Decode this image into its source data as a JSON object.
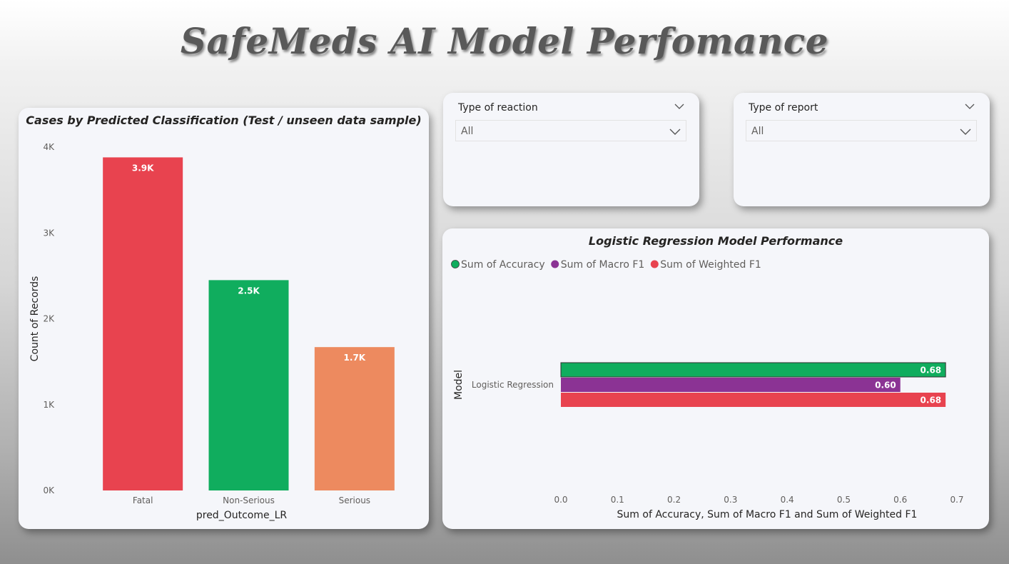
{
  "page": {
    "title": "SafeMeds AI Model Perfomance"
  },
  "slicers": [
    {
      "label": "Type of reaction",
      "value": "All"
    },
    {
      "label": "Type of report",
      "value": "All"
    }
  ],
  "colors": {
    "red": "#e8434f",
    "green": "#10ad5e",
    "orange": "#ed8a5f",
    "purple": "#8b3394",
    "card": "#f5f6fa"
  },
  "chart_data": [
    {
      "type": "bar",
      "title": "Cases by Predicted Classification (Test / unseen data sample)",
      "xlabel": "pred_Outcome_LR",
      "ylabel": "Count of Records",
      "categories": [
        "Fatal",
        "Non-Serious",
        "Serious"
      ],
      "values": [
        3880,
        2450,
        1670
      ],
      "data_labels": [
        "3.9K",
        "2.5K",
        "1.7K"
      ],
      "bar_colors": [
        "#e8434f",
        "#10ad5e",
        "#ed8a5f"
      ],
      "ylim": [
        0,
        4000
      ],
      "yticks": [
        0,
        1000,
        2000,
        3000,
        4000
      ],
      "ytick_labels": [
        "0K",
        "1K",
        "2K",
        "3K",
        "4K"
      ],
      "grid": false
    },
    {
      "type": "bar",
      "orientation": "horizontal",
      "title": "Logistic Regression Model Performance",
      "xlabel": "Sum of Accuracy, Sum of Macro F1 and Sum of Weighted F1",
      "ylabel": "Model",
      "categories": [
        "Logistic Regression"
      ],
      "series": [
        {
          "name": "Sum of Accuracy",
          "values": [
            0.68
          ],
          "data_label": "0.68",
          "color": "#10ad5e"
        },
        {
          "name": "Sum of Macro F1",
          "values": [
            0.6
          ],
          "data_label": "0.60",
          "color": "#8b3394"
        },
        {
          "name": "Sum of Weighted F1",
          "values": [
            0.68
          ],
          "data_label": "0.68",
          "color": "#e8434f"
        }
      ],
      "xlim": [
        0,
        0.7
      ],
      "xticks": [
        0.0,
        0.1,
        0.2,
        0.3,
        0.4,
        0.5,
        0.6,
        0.7
      ],
      "xtick_labels": [
        "0.0",
        "0.1",
        "0.2",
        "0.3",
        "0.4",
        "0.5",
        "0.6",
        "0.7"
      ],
      "legend": "top-left",
      "grid": false
    }
  ]
}
